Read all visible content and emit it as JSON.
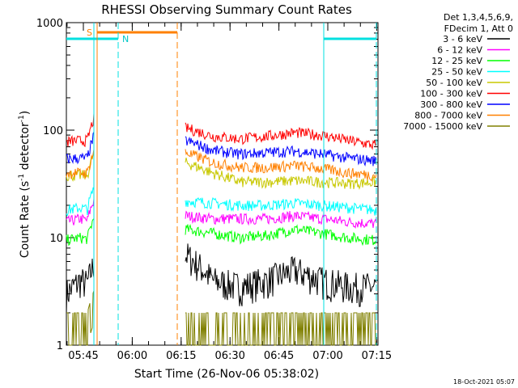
{
  "chart_data": {
    "type": "line",
    "title": "RHESSI Observing Summary Count Rates",
    "xlabel": "Start Time (26-Nov-06 05:38:02)",
    "ylabel_main": "Count Rate (s",
    "ylabel_sup1": "-1",
    "ylabel_mid": " detector",
    "ylabel_sup2": "-1",
    "ylabel_end": ")",
    "y_scale": "log",
    "ylim": [
      1,
      1000
    ],
    "x_tick_labels": [
      "05:45",
      "06:00",
      "06:15",
      "06:30",
      "06:45",
      "07:00",
      "07:15"
    ],
    "y_tick_labels": [
      "1",
      "10",
      "100",
      "1000"
    ],
    "legend_header": [
      "Det 1,3,4,5,6,9,",
      "FDecim 1, Att 0"
    ],
    "legend_placement": "right",
    "footer_timestamp": "18-Oct-2021 05:07",
    "flag_labels": {
      "saa": "S",
      "night": "N"
    },
    "series": [
      {
        "name": "3 - 6 keV",
        "color": "#000000",
        "values_before_gap": [
          3,
          4,
          3.5
        ],
        "values_after_gap": [
          7,
          4,
          3.5,
          4,
          5,
          4,
          3.5,
          3.5
        ]
      },
      {
        "name": "6 - 12 keV",
        "color": "#ff00ff",
        "values_before_gap": [
          14,
          15,
          14
        ],
        "values_after_gap": [
          16,
          15,
          15,
          15,
          16,
          15,
          14,
          13.5
        ]
      },
      {
        "name": "12 - 25 keV",
        "color": "#00ff00",
        "values_before_gap": [
          9.5,
          10,
          9.5
        ],
        "values_after_gap": [
          12,
          11,
          10,
          10.5,
          12,
          11,
          10,
          9.5
        ]
      },
      {
        "name": "25 - 50 keV",
        "color": "#00ffff",
        "values_before_gap": [
          18,
          19,
          18
        ],
        "values_after_gap": [
          22,
          21,
          20,
          20,
          21,
          20,
          19,
          18
        ]
      },
      {
        "name": "50 - 100 keV",
        "color": "#c8c800",
        "values_before_gap": [
          38,
          38,
          38
        ],
        "values_after_gap": [
          50,
          40,
          33,
          33,
          34,
          33,
          32,
          33
        ]
      },
      {
        "name": "100 - 300 keV",
        "color": "#ff0000",
        "values_before_gap": [
          78,
          80,
          80
        ],
        "values_after_gap": [
          105,
          88,
          83,
          88,
          95,
          90,
          80,
          72
        ]
      },
      {
        "name": "300 - 800 keV",
        "color": "#0000ff",
        "values_before_gap": [
          54,
          55,
          55
        ],
        "values_after_gap": [
          80,
          65,
          60,
          62,
          64,
          60,
          55,
          52
        ]
      },
      {
        "name": "800 - 7000 keV",
        "color": "#ff8000",
        "values_before_gap": [
          40,
          40,
          40
        ],
        "values_after_gap": [
          62,
          50,
          45,
          45,
          47,
          44,
          40,
          38
        ]
      },
      {
        "name": "7000 - 15000 keV",
        "color": "#808000",
        "values_before_gap": [
          2,
          2,
          2
        ],
        "values_after_gap": [
          2,
          2,
          2,
          2.5,
          3,
          2.5,
          2,
          2
        ]
      }
    ]
  }
}
